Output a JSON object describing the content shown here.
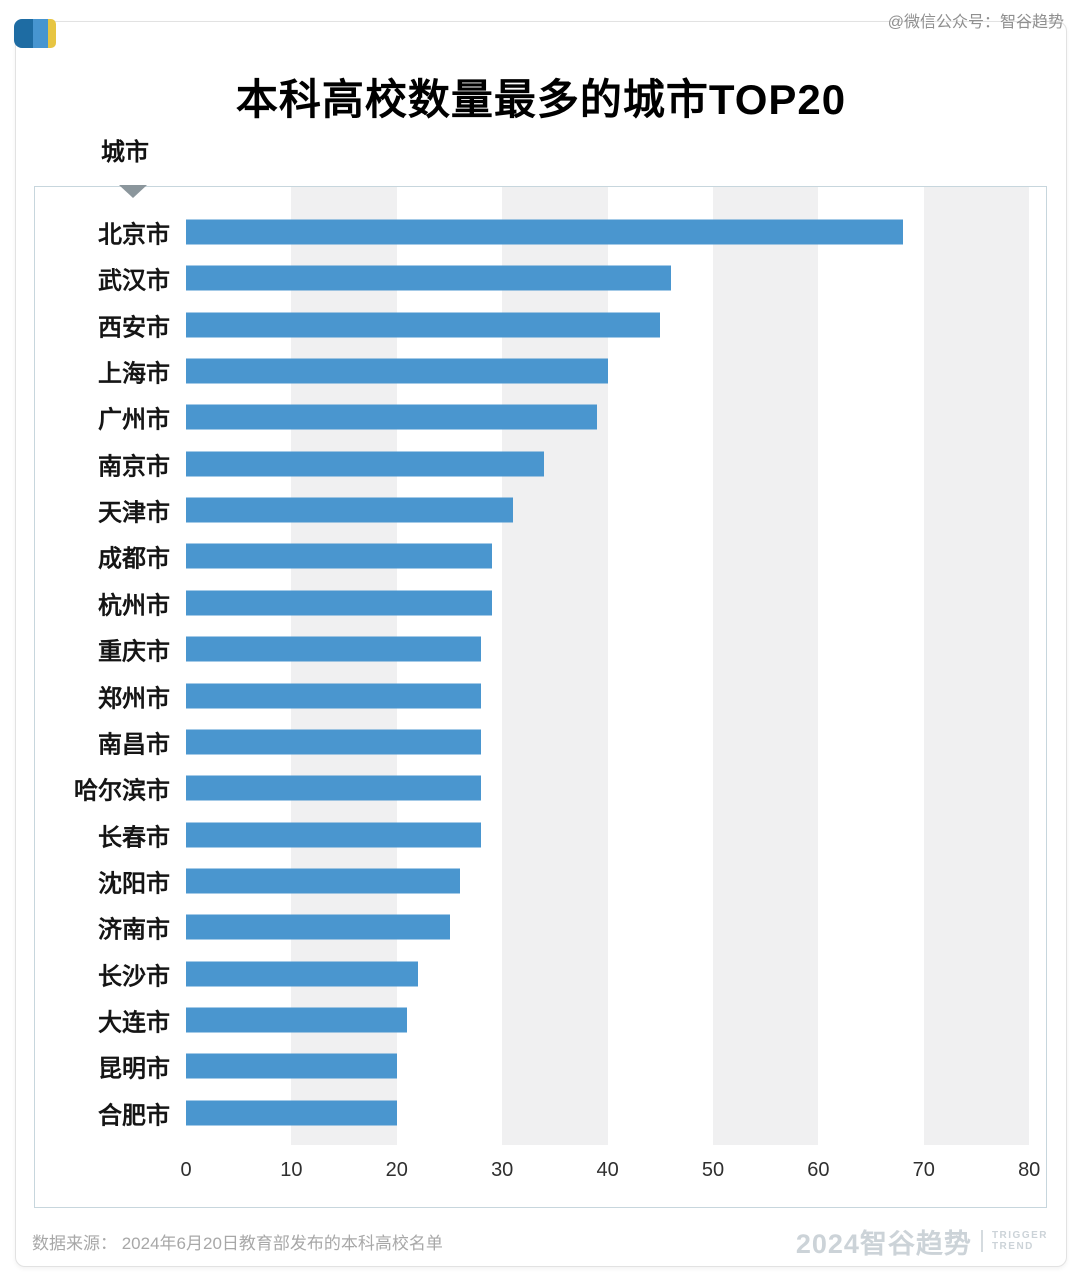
{
  "watermark": "@微信公众号：智谷趋势",
  "footer": {
    "source": "数据来源：  2024年6月20日教育部发布的本科高校名单",
    "brand": "2024智谷趋势",
    "brand_sub": [
      "TRIGGER",
      "TREND"
    ]
  },
  "chart_data": {
    "type": "bar",
    "orientation": "horizontal",
    "title": "本科高校数量最多的城市TOP20",
    "field_label": "城市",
    "categories": [
      "北京市",
      "武汉市",
      "西安市",
      "上海市",
      "广州市",
      "南京市",
      "天津市",
      "成都市",
      "杭州市",
      "重庆市",
      "郑州市",
      "南昌市",
      "哈尔滨市",
      "长春市",
      "沈阳市",
      "济南市",
      "长沙市",
      "大连市",
      "昆明市",
      "合肥市"
    ],
    "values": [
      68,
      46,
      45,
      40,
      39,
      34,
      31,
      29,
      29,
      28,
      28,
      28,
      28,
      28,
      26,
      25,
      22,
      21,
      20,
      20
    ],
    "xlim": [
      0,
      80
    ],
    "x_ticks": [
      0,
      10,
      20,
      30,
      40,
      50,
      60,
      70,
      80
    ],
    "bar_color": "#4A96CF",
    "stripe_color": "#f0f0f1",
    "stripe_ranges": [
      [
        10,
        20
      ],
      [
        30,
        40
      ],
      [
        50,
        60
      ],
      [
        70,
        80
      ]
    ],
    "grid": false,
    "legend": "none"
  }
}
